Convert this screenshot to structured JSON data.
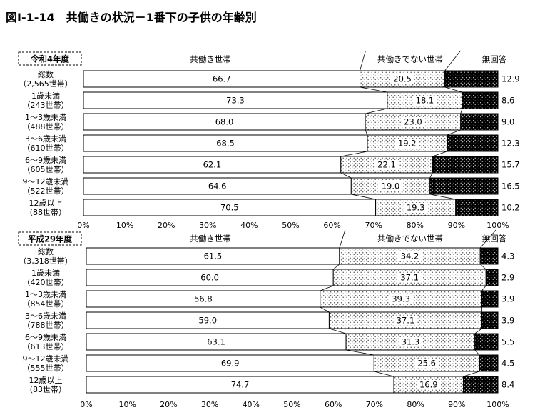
{
  "title": "図Ⅰ-1-14　共働きの状況－1番下の子供の年齢別",
  "colors": {
    "both_working": "#ffffff",
    "not_both": "#e6e6e6",
    "no_answer": "#000000",
    "border": "#000000"
  },
  "chart_data": [
    {
      "type": "bar",
      "stacked": "horizontal-100%",
      "panel_label": "令和4年度",
      "legend": [
        "共働き世帯",
        "共働きでない世帯",
        "無回答"
      ],
      "xlim": [
        0,
        100
      ],
      "xticks": [
        "0%",
        "10%",
        "20%",
        "30%",
        "40%",
        "50%",
        "60%",
        "70%",
        "80%",
        "90%",
        "100%"
      ],
      "categories": [
        {
          "name": "総数",
          "n": "（2,565世帯）"
        },
        {
          "name": "1歳未満",
          "n": "（243世帯）"
        },
        {
          "name": "1～3歳未満",
          "n": "（488世帯）"
        },
        {
          "name": "3～6歳未満",
          "n": "（610世帯）"
        },
        {
          "name": "6～9歳未満",
          "n": "（605世帯）"
        },
        {
          "name": "9～12歳未満",
          "n": "（522世帯）"
        },
        {
          "name": "12歳以上",
          "n": "（88世帯）"
        }
      ],
      "series": [
        {
          "name": "共働き世帯",
          "values": [
            66.7,
            73.3,
            68.0,
            68.5,
            62.1,
            64.6,
            70.5
          ]
        },
        {
          "name": "共働きでない世帯",
          "values": [
            20.5,
            18.1,
            23.0,
            19.2,
            22.1,
            19.0,
            19.3
          ]
        },
        {
          "name": "無回答",
          "values": [
            12.9,
            8.6,
            9.0,
            12.3,
            15.7,
            16.5,
            10.2
          ]
        }
      ]
    },
    {
      "type": "bar",
      "stacked": "horizontal-100%",
      "panel_label": "平成29年度",
      "legend": [
        "共働き世帯",
        "共働きでない世帯",
        "無回答"
      ],
      "xlim": [
        0,
        100
      ],
      "xticks": [
        "0%",
        "10%",
        "20%",
        "30%",
        "40%",
        "50%",
        "60%",
        "70%",
        "80%",
        "90%",
        "100%"
      ],
      "categories": [
        {
          "name": "総数",
          "n": "（3,318世帯）"
        },
        {
          "name": "1歳未満",
          "n": "（420世帯）"
        },
        {
          "name": "1～3歳未満",
          "n": "（854世帯）"
        },
        {
          "name": "3～6歳未満",
          "n": "（788世帯）"
        },
        {
          "name": "6～9歳未満",
          "n": "（613世帯）"
        },
        {
          "name": "9～12歳未満",
          "n": "（555世帯）"
        },
        {
          "name": "12歳以上",
          "n": "（83世帯）"
        }
      ],
      "series": [
        {
          "name": "共働き世帯",
          "values": [
            61.5,
            60.0,
            56.8,
            59.0,
            63.1,
            69.9,
            74.7
          ]
        },
        {
          "name": "共働きでない世帯",
          "values": [
            34.2,
            37.1,
            39.3,
            37.1,
            31.3,
            25.6,
            16.9
          ]
        },
        {
          "name": "無回答",
          "values": [
            4.3,
            2.9,
            3.9,
            3.9,
            5.5,
            4.5,
            8.4
          ]
        }
      ]
    }
  ]
}
